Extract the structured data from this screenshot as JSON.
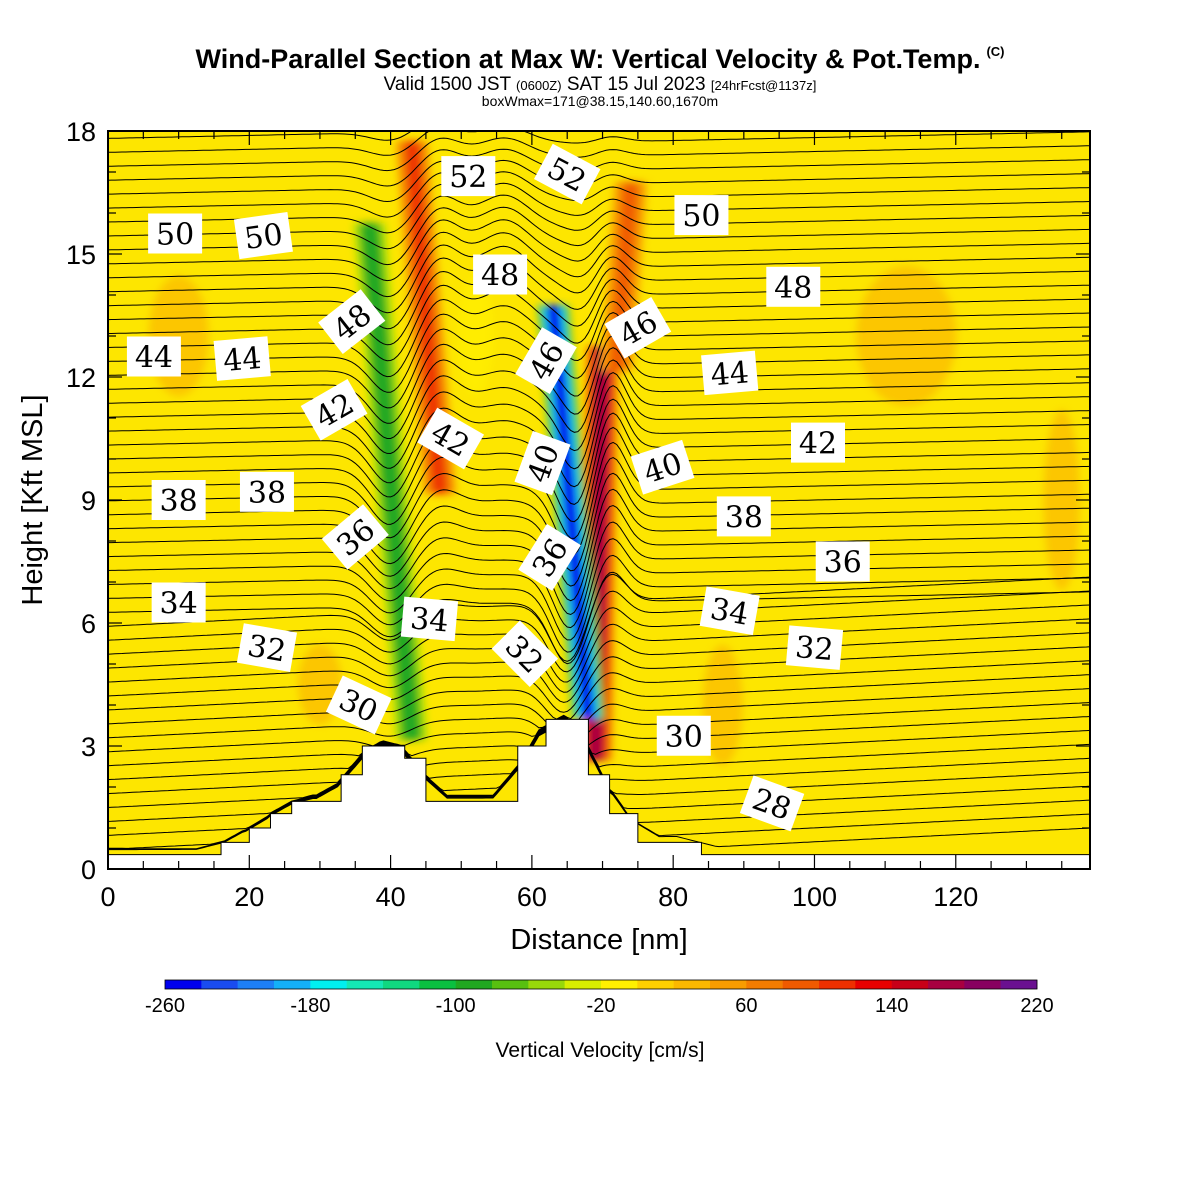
{
  "header": {
    "title": "Wind-Parallel Section at Max W: Vertical Velocity & Pot.Temp.",
    "copyright": "(C)",
    "valid_prefix": "Valid 1500 JST",
    "valid_utc": "(0600Z)",
    "valid_date": "SAT 15 Jul 2023",
    "forecast": "[24hrFcst@1137z]",
    "boxwmax": "boxWmax=171@38.15,140.60,1670m"
  },
  "colors": {
    "background_field": "#fde600",
    "terrain": "#ffffff",
    "contour_line": "#000000"
  },
  "chart_data": {
    "type": "heatmap",
    "xlabel": "Distance [nm]",
    "ylabel": "Height [Kft MSL]",
    "xlim": [
      0,
      139
    ],
    "ylim": [
      0,
      18
    ],
    "x_ticks": [
      0,
      20,
      40,
      60,
      80,
      100,
      120
    ],
    "y_ticks": [
      0,
      3,
      6,
      9,
      12,
      15,
      18
    ],
    "colorbar": {
      "title": "Vertical Velocity [cm/s]",
      "min": -260,
      "max": 220,
      "step": 20,
      "tick_labels": [
        "-260",
        "-180",
        "-100",
        "-20",
        "60",
        "140",
        "220"
      ],
      "colors": [
        "#0000ee",
        "#1a4cf0",
        "#1d7ff6",
        "#14b0f8",
        "#00f0f0",
        "#14e8b4",
        "#10d880",
        "#0ac040",
        "#20a820",
        "#58c010",
        "#98d80a",
        "#d8ee00",
        "#fff000",
        "#fdd000",
        "#fbb800",
        "#f89c00",
        "#f47c00",
        "#f05a00",
        "#ee3000",
        "#e80000",
        "#c80018",
        "#a80040",
        "#880060",
        "#6a1090"
      ]
    },
    "terrain_profile": {
      "x": [
        0,
        16,
        16,
        20,
        20,
        23,
        23,
        26,
        26,
        33,
        33,
        36,
        36,
        42,
        42,
        45,
        45,
        58,
        58,
        62,
        62,
        68,
        68,
        71,
        71,
        75,
        75,
        84,
        84,
        139
      ],
      "y": [
        0.35,
        0.35,
        0.65,
        0.65,
        1.0,
        1.0,
        1.35,
        1.35,
        1.65,
        1.65,
        2.3,
        2.3,
        3.0,
        3.0,
        2.7,
        2.7,
        1.65,
        1.65,
        3.0,
        3.0,
        3.65,
        3.65,
        2.3,
        2.3,
        1.35,
        1.35,
        0.65,
        0.65,
        0.35,
        0.35
      ]
    },
    "features": [
      {
        "name": "updraft",
        "x_top": 70,
        "x_bottom": 69,
        "y_from": 2.5,
        "y_to": 13,
        "peak_value": 171
      },
      {
        "name": "downdraft",
        "x_top": 63,
        "x_bottom": 68,
        "y_from": 3.5,
        "y_to": 14,
        "peak_value": -250
      },
      {
        "name": "downdraft",
        "x_top": 37,
        "x_bottom": 43,
        "y_from": 3,
        "y_to": 16,
        "peak_value": -100
      },
      {
        "name": "updraft",
        "x_top": 43,
        "x_bottom": 47,
        "y_from": 9,
        "y_to": 18,
        "peak_value": 100
      },
      {
        "name": "updraft",
        "x_top": 74,
        "x_bottom": 72,
        "y_from": 12,
        "y_to": 17,
        "peak_value": 80
      }
    ],
    "contour_labels": [
      {
        "text": "50",
        "x": 9.5,
        "y": 15.5,
        "angle": 0
      },
      {
        "text": "50",
        "x": 22,
        "y": 15.45,
        "angle": 8
      },
      {
        "text": "52",
        "x": 51,
        "y": 16.9,
        "angle": 0
      },
      {
        "text": "52",
        "x": 65,
        "y": 16.95,
        "angle": -28
      },
      {
        "text": "50",
        "x": 84,
        "y": 15.95,
        "angle": 0
      },
      {
        "text": "48",
        "x": 55.5,
        "y": 14.5,
        "angle": 0
      },
      {
        "text": "48",
        "x": 97,
        "y": 14.2,
        "angle": 0
      },
      {
        "text": "48",
        "x": 34.5,
        "y": 13.35,
        "angle": 38
      },
      {
        "text": "46",
        "x": 75,
        "y": 13.2,
        "angle": 30
      },
      {
        "text": "46",
        "x": 62,
        "y": 12.4,
        "angle": 60
      },
      {
        "text": "44",
        "x": 6.5,
        "y": 12.5,
        "angle": 0
      },
      {
        "text": "44",
        "x": 19,
        "y": 12.45,
        "angle": 5
      },
      {
        "text": "44",
        "x": 88,
        "y": 12.1,
        "angle": 5
      },
      {
        "text": "42",
        "x": 32,
        "y": 11.2,
        "angle": 30
      },
      {
        "text": "42",
        "x": 48.5,
        "y": 10.5,
        "angle": -30
      },
      {
        "text": "42",
        "x": 100.5,
        "y": 10.4,
        "angle": 0
      },
      {
        "text": "40",
        "x": 61.5,
        "y": 9.9,
        "angle": 70
      },
      {
        "text": "40",
        "x": 78.5,
        "y": 9.8,
        "angle": 18
      },
      {
        "text": "38",
        "x": 10,
        "y": 9.0,
        "angle": 0
      },
      {
        "text": "38",
        "x": 22.5,
        "y": 9.2,
        "angle": 0
      },
      {
        "text": "38",
        "x": 90,
        "y": 8.6,
        "angle": 0
      },
      {
        "text": "36",
        "x": 35,
        "y": 8.1,
        "angle": 40
      },
      {
        "text": "36",
        "x": 62.5,
        "y": 7.6,
        "angle": 58
      },
      {
        "text": "36",
        "x": 104,
        "y": 7.5,
        "angle": 0
      },
      {
        "text": "34",
        "x": 10,
        "y": 6.5,
        "angle": 0
      },
      {
        "text": "34",
        "x": 45.5,
        "y": 6.1,
        "angle": -5
      },
      {
        "text": "34",
        "x": 88,
        "y": 6.3,
        "angle": -10
      },
      {
        "text": "32",
        "x": 22.5,
        "y": 5.4,
        "angle": -10
      },
      {
        "text": "32",
        "x": 59,
        "y": 5.25,
        "angle": -45
      },
      {
        "text": "32",
        "x": 100,
        "y": 5.4,
        "angle": -5
      },
      {
        "text": "30",
        "x": 35.5,
        "y": 4.0,
        "angle": -25
      },
      {
        "text": "30",
        "x": 81.5,
        "y": 3.25,
        "angle": 0
      },
      {
        "text": "28",
        "x": 94,
        "y": 1.6,
        "angle": -20
      }
    ]
  }
}
